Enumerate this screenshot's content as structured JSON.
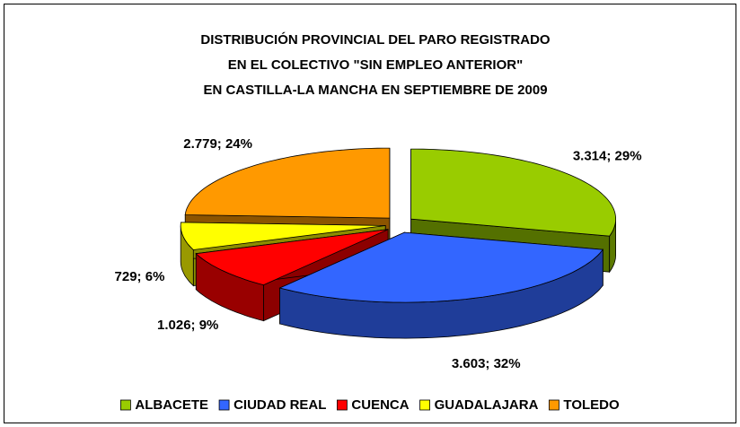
{
  "chart_data": {
    "type": "pie",
    "title": [
      "DISTRIBUCIÓN PROVINCIAL DEL PARO REGISTRADO",
      "EN EL COLECTIVO \"SIN EMPLEO ANTERIOR\"",
      "EN CASTILLA-LA MANCHA EN SEPTIEMBRE DE 2009"
    ],
    "categories": [
      "ALBACETE",
      "CIUDAD REAL",
      "CUENCA",
      "GUADALAJARA",
      "TOLEDO"
    ],
    "values": [
      3314,
      3603,
      1026,
      729,
      2779
    ],
    "value_labels": [
      "3.314; 29%",
      "3.603; 32%",
      "1.026; 9%",
      "729; 6%",
      "2.779; 24%"
    ],
    "colors": [
      "#99cc00",
      "#3366ff",
      "#ff0000",
      "#ffff00",
      "#ff9900"
    ],
    "legend": "bottom"
  }
}
